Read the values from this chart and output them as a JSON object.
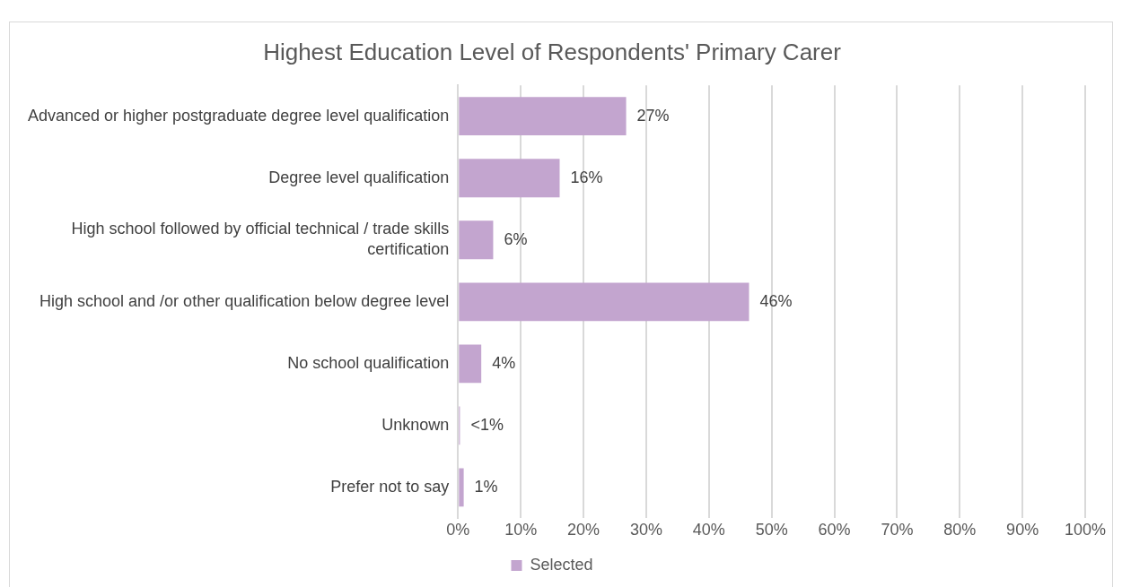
{
  "chart_data": {
    "type": "bar",
    "orientation": "horizontal",
    "title": "Highest Education Level of Respondents' Primary Carer",
    "categories": [
      "Advanced or higher postgraduate degree level qualification",
      "Degree level qualification",
      "High school followed by official technical / trade skills certification",
      "High school and /or other qualification below degree level",
      "No school qualification",
      "Unknown",
      "Prefer not to say"
    ],
    "series": [
      {
        "name": "Selected",
        "color": "#c3a5cf",
        "values": [
          26.8,
          16.2,
          5.6,
          46.4,
          3.7,
          0.3,
          0.9
        ],
        "value_labels": [
          "27%",
          "16%",
          "6%",
          "46%",
          "4%",
          "<1%",
          "1%"
        ]
      }
    ],
    "xlim": [
      0,
      100
    ],
    "xticks": [
      {
        "value": 0,
        "label": "0%"
      },
      {
        "value": 10,
        "label": "10%"
      },
      {
        "value": 20,
        "label": "20%"
      },
      {
        "value": 30,
        "label": "30%"
      },
      {
        "value": 40,
        "label": "40%"
      },
      {
        "value": 50,
        "label": "50%"
      },
      {
        "value": 60,
        "label": "60%"
      },
      {
        "value": 70,
        "label": "70%"
      },
      {
        "value": 80,
        "label": "80%"
      },
      {
        "value": 90,
        "label": "90%"
      },
      {
        "value": 100,
        "label": "100%"
      }
    ],
    "grid": "x",
    "legend": "bottom"
  }
}
